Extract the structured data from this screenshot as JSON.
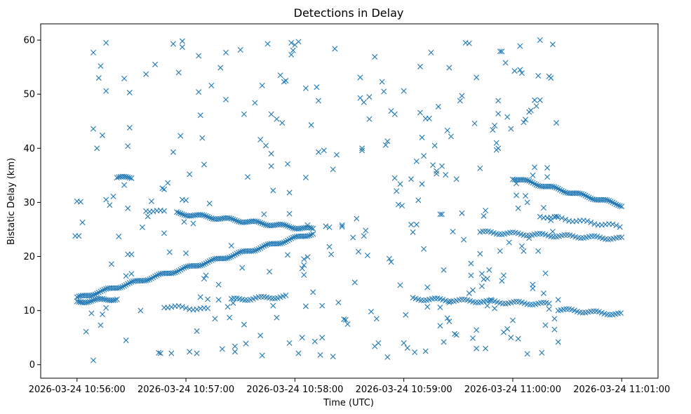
{
  "chart_data": {
    "type": "scatter",
    "title": "Detections in Delay",
    "xlabel": "Time (UTC)",
    "ylabel": "Bistatic Delay (km)",
    "marker": "x",
    "color": "#1f77b4",
    "xlim_seconds": [
      -20,
      320
    ],
    "ylim": [
      -2.5,
      63
    ],
    "x_ticks": [
      {
        "t": 0,
        "label": "2026-03-24 10:56:00"
      },
      {
        "t": 60,
        "label": "2026-03-24 10:57:00"
      },
      {
        "t": 120,
        "label": "2026-03-24 10:58:00"
      },
      {
        "t": 180,
        "label": "2026-03-24 10:59:00"
      },
      {
        "t": 240,
        "label": "2026-03-24 11:00:00"
      },
      {
        "t": 300,
        "label": "2026-03-24 11:01:00"
      }
    ],
    "y_ticks": [
      0,
      10,
      20,
      30,
      40,
      50,
      60
    ],
    "tracks": [
      {
        "name": "rising track",
        "t_start": 0,
        "t_end": 130,
        "y_start": 12.3,
        "y_end": 24.3,
        "step_s": 1
      },
      {
        "name": "falling track upper",
        "t_start": 55,
        "t_end": 130,
        "y_start": 28.0,
        "y_end": 25.0,
        "step_s": 1
      },
      {
        "name": "near 12 km left",
        "t_start": 0,
        "t_end": 22,
        "y_start": 11.6,
        "y_end": 12.2,
        "step_s": 1
      },
      {
        "name": "near 12 km mid",
        "t_start": 85,
        "t_end": 115,
        "y_start": 12.0,
        "y_end": 12.6,
        "step_s": 1.5
      },
      {
        "name": "near 12 km right",
        "t_start": 185,
        "t_end": 260,
        "y_start": 12.2,
        "y_end": 11.2,
        "step_s": 1.5
      },
      {
        "name": "near 10 km right",
        "t_start": 265,
        "t_end": 300,
        "y_start": 10.2,
        "y_end": 9.3,
        "step_s": 1.5
      },
      {
        "name": "24 km right",
        "t_start": 222,
        "t_end": 300,
        "y_start": 24.5,
        "y_end": 23.3,
        "step_s": 1.5
      },
      {
        "name": "falling track right",
        "t_start": 240,
        "t_end": 300,
        "y_start": 34.5,
        "y_end": 29.5,
        "step_s": 1
      },
      {
        "name": "27 km right",
        "t_start": 255,
        "t_end": 300,
        "y_start": 27.5,
        "y_end": 25.5,
        "step_s": 2
      },
      {
        "name": "34.5 km cluster",
        "t_start": 22,
        "t_end": 30,
        "y_start": 34.5,
        "y_end": 34.6,
        "step_s": 1
      },
      {
        "name": "28 km cluster",
        "t_start": 38,
        "t_end": 48,
        "y_start": 28.6,
        "y_end": 28.2,
        "step_s": 2
      },
      {
        "name": "11 km cluster",
        "t_start": 48,
        "t_end": 72,
        "y_start": 10.8,
        "y_end": 10.2,
        "step_s": 2
      }
    ],
    "scatter_points": [
      [
        -1,
        23.8
      ],
      [
        0,
        30.2
      ],
      [
        1,
        23.8
      ],
      [
        2,
        30.1
      ],
      [
        3,
        26.3
      ],
      [
        2,
        11.6
      ],
      [
        5,
        6.1
      ],
      [
        9,
        0.8
      ],
      [
        9,
        57.7
      ],
      [
        9,
        43.6
      ],
      [
        11,
        40.0
      ],
      [
        12,
        53.0
      ],
      [
        13,
        55.2
      ],
      [
        14,
        42.4
      ],
      [
        16,
        59.5
      ],
      [
        16,
        50.6
      ],
      [
        16,
        30.5
      ],
      [
        18,
        29.5
      ],
      [
        19,
        18.6
      ],
      [
        20,
        31.1
      ],
      [
        23,
        23.7
      ],
      [
        26,
        33.2
      ],
      [
        26,
        52.9
      ],
      [
        27,
        4.5
      ],
      [
        28,
        40.4
      ],
      [
        28,
        28.9
      ],
      [
        29,
        43.8
      ],
      [
        29,
        50.3
      ],
      [
        28,
        20.4
      ],
      [
        30,
        20.4
      ],
      [
        30,
        16.8
      ],
      [
        27,
        16.4
      ],
      [
        13,
        7.3
      ],
      [
        14,
        9.3
      ],
      [
        16,
        10.5
      ],
      [
        8,
        9.5
      ],
      [
        35,
        10.0
      ],
      [
        36,
        25.4
      ],
      [
        38,
        53.7
      ],
      [
        39,
        27.4
      ],
      [
        41,
        30.2
      ],
      [
        43,
        55.5
      ],
      [
        45,
        2.2
      ],
      [
        46,
        2.1
      ],
      [
        47,
        32.6
      ],
      [
        48,
        32.4
      ],
      [
        48,
        24.3
      ],
      [
        50,
        33.6
      ],
      [
        52,
        2.1
      ],
      [
        51,
        20.8
      ],
      [
        53,
        39.3
      ],
      [
        53,
        59.3
      ],
      [
        56,
        54.0
      ],
      [
        57,
        42.3
      ],
      [
        58,
        30.5
      ],
      [
        58,
        59.8
      ],
      [
        58,
        58.7
      ],
      [
        59,
        26.4
      ],
      [
        60,
        30.4
      ],
      [
        60,
        20.6
      ],
      [
        62,
        35.2
      ],
      [
        62,
        2.4
      ],
      [
        64,
        26.1
      ],
      [
        66,
        2.1
      ],
      [
        66,
        6.2
      ],
      [
        67,
        57.1
      ],
      [
        67,
        50.4
      ],
      [
        68,
        46.1
      ],
      [
        69,
        41.9
      ],
      [
        70,
        37.0
      ],
      [
        68,
        12.5
      ],
      [
        70,
        15.9
      ],
      [
        71,
        16.5
      ],
      [
        72,
        12.1
      ],
      [
        73,
        29.8
      ],
      [
        74,
        51.6
      ],
      [
        76,
        8.5
      ],
      [
        78,
        14.8
      ],
      [
        78,
        12.0
      ],
      [
        79,
        54.9
      ],
      [
        80,
        2.9
      ],
      [
        82,
        49.0
      ],
      [
        82,
        57.7
      ],
      [
        83,
        10.7
      ],
      [
        84,
        8.7
      ],
      [
        85,
        22.0
      ],
      [
        86,
        11.4
      ],
      [
        87,
        2.4
      ],
      [
        87,
        3.4
      ],
      [
        90,
        58.2
      ],
      [
        91,
        17.9
      ],
      [
        92,
        7.4
      ],
      [
        92,
        46.3
      ],
      [
        93,
        3.9
      ],
      [
        94,
        34.7
      ],
      [
        98,
        48.4
      ],
      [
        101,
        41.6
      ],
      [
        101,
        5.4
      ],
      [
        102,
        1.7
      ],
      [
        102,
        51.6
      ],
      [
        103,
        27.8
      ],
      [
        104,
        40.5
      ],
      [
        105,
        59.3
      ],
      [
        106,
        17.2
      ],
      [
        107,
        46.3
      ],
      [
        107,
        39.0
      ],
      [
        107,
        36.7
      ],
      [
        108,
        10.9
      ],
      [
        108,
        32.2
      ],
      [
        110,
        8.7
      ],
      [
        110,
        45.4
      ],
      [
        112,
        53.5
      ],
      [
        113,
        44.7
      ],
      [
        114,
        52.3
      ],
      [
        115,
        52.5
      ],
      [
        116,
        37.1
      ],
      [
        116,
        20.3
      ],
      [
        117,
        31.8
      ],
      [
        117,
        27.9
      ],
      [
        117,
        4.0
      ],
      [
        118,
        57.3
      ],
      [
        118,
        59.5
      ],
      [
        119,
        58.1
      ],
      [
        120,
        59.1
      ],
      [
        122,
        59.7
      ],
      [
        122,
        2.1
      ],
      [
        124,
        5.0
      ],
      [
        124,
        17.8
      ],
      [
        125,
        18.4
      ],
      [
        125,
        16.6
      ],
      [
        125,
        19.5
      ],
      [
        126,
        34.6
      ],
      [
        127,
        25.8
      ],
      [
        126,
        51.1
      ],
      [
        126,
        10.8
      ],
      [
        127,
        19.9
      ],
      [
        129,
        44.3
      ],
      [
        130,
        13.4
      ],
      [
        131,
        4.3
      ],
      [
        132,
        51.3
      ],
      [
        133,
        48.8
      ],
      [
        133,
        39.3
      ],
      [
        134,
        1.8
      ],
      [
        135,
        5.0
      ],
      [
        135,
        10.9
      ],
      [
        136,
        39.6
      ],
      [
        137,
        25.6
      ],
      [
        139,
        21.8
      ],
      [
        139,
        25.4
      ],
      [
        140,
        20.4
      ],
      [
        141,
        36.1
      ],
      [
        141,
        1.5
      ],
      [
        142,
        58.4
      ],
      [
        143,
        38.8
      ],
      [
        144,
        11.5
      ],
      [
        146,
        25.8
      ],
      [
        146,
        25.5
      ],
      [
        147,
        8.4
      ],
      [
        148,
        8.3
      ],
      [
        149,
        7.5
      ],
      [
        152,
        23.5
      ],
      [
        153,
        15.2
      ],
      [
        154,
        27.0
      ],
      [
        155,
        20.9
      ],
      [
        156,
        53.1
      ],
      [
        156,
        49.3
      ],
      [
        157,
        40.0
      ],
      [
        157,
        39.6
      ],
      [
        158,
        48.5
      ],
      [
        158,
        23.8
      ],
      [
        159,
        24.8
      ],
      [
        160,
        20.2
      ],
      [
        161,
        45.4
      ],
      [
        161,
        49.5
      ],
      [
        162,
        9.8
      ],
      [
        164,
        56.9
      ],
      [
        164,
        3.4
      ],
      [
        165,
        8.5
      ],
      [
        166,
        4.0
      ],
      [
        168,
        52.3
      ],
      [
        169,
        50.5
      ],
      [
        170,
        40.6
      ],
      [
        171,
        41.3
      ],
      [
        171,
        1.4
      ],
      [
        172,
        19.6
      ],
      [
        173,
        19.0
      ],
      [
        173,
        46.9
      ],
      [
        175,
        34.5
      ],
      [
        175,
        46.3
      ],
      [
        176,
        32.1
      ],
      [
        177,
        29.6
      ],
      [
        178,
        33.4
      ],
      [
        178,
        14.7
      ],
      [
        179,
        29.4
      ],
      [
        180,
        50.6
      ],
      [
        180,
        4.0
      ],
      [
        181,
        9.2
      ],
      [
        182,
        3.1
      ],
      [
        184,
        25.9
      ],
      [
        184,
        34.3
      ],
      [
        185,
        24.5
      ],
      [
        186,
        2.3
      ],
      [
        187,
        37.6
      ],
      [
        187,
        25.9
      ],
      [
        188,
        30.4
      ],
      [
        189,
        55.1
      ],
      [
        189,
        46.6
      ],
      [
        190,
        42.0
      ],
      [
        190,
        33.4
      ],
      [
        191,
        21.4
      ],
      [
        191,
        38.6
      ],
      [
        192,
        2.5
      ],
      [
        192,
        45.5
      ],
      [
        193,
        10.7
      ],
      [
        193,
        14.3
      ],
      [
        194,
        45.5
      ],
      [
        195,
        57.7
      ],
      [
        196,
        36.9
      ],
      [
        197,
        40.5
      ],
      [
        198,
        35.8
      ],
      [
        198,
        35.3
      ],
      [
        199,
        47.7
      ],
      [
        200,
        7.2
      ],
      [
        200,
        27.8
      ],
      [
        200,
        10.6
      ],
      [
        201,
        36.7
      ],
      [
        201,
        27.8
      ],
      [
        202,
        17.5
      ],
      [
        202,
        4.2
      ],
      [
        203,
        35.1
      ],
      [
        204,
        8.6
      ],
      [
        204,
        43.3
      ],
      [
        205,
        8.0
      ],
      [
        205,
        11.5
      ],
      [
        205,
        54.9
      ],
      [
        206,
        42.2
      ],
      [
        207,
        24.6
      ],
      [
        208,
        5.7
      ],
      [
        209,
        5.5
      ],
      [
        209,
        34.3
      ],
      [
        211,
        48.8
      ],
      [
        212,
        49.7
      ],
      [
        212,
        28.0
      ],
      [
        213,
        23.1
      ],
      [
        214,
        59.5
      ],
      [
        216,
        13.2
      ],
      [
        216,
        59.4
      ],
      [
        217,
        18.7
      ],
      [
        217,
        16.5
      ],
      [
        218,
        4.9
      ],
      [
        218,
        13.8
      ],
      [
        219,
        44.6
      ],
      [
        220,
        53.1
      ],
      [
        220,
        3.0
      ],
      [
        220,
        6.4
      ],
      [
        222,
        36.3
      ],
      [
        222,
        20.5
      ],
      [
        223,
        16.8
      ],
      [
        223,
        14.5
      ],
      [
        224,
        15.8
      ],
      [
        224,
        27.5
      ],
      [
        225,
        3.0
      ],
      [
        225,
        28.5
      ],
      [
        226,
        10.9
      ],
      [
        226,
        15.9
      ],
      [
        227,
        17.5
      ],
      [
        228,
        12.0
      ],
      [
        229,
        43.4
      ],
      [
        230,
        44.2
      ],
      [
        230,
        10.4
      ],
      [
        231,
        41.0
      ],
      [
        231,
        39.7
      ],
      [
        232,
        40.0
      ],
      [
        232,
        46.4
      ],
      [
        232,
        48.8
      ],
      [
        233,
        57.9
      ],
      [
        233,
        21.0
      ],
      [
        234,
        57.9
      ],
      [
        234,
        15.5
      ],
      [
        235,
        6.0
      ],
      [
        235,
        16.5
      ],
      [
        236,
        55.8
      ],
      [
        237,
        45.8
      ],
      [
        237,
        6.6
      ],
      [
        238,
        22.6
      ],
      [
        239,
        43.6
      ],
      [
        239,
        5.0
      ],
      [
        240,
        8.2
      ],
      [
        241,
        54.3
      ],
      [
        242,
        33.5
      ],
      [
        242,
        31.3
      ],
      [
        243,
        4.8
      ],
      [
        243,
        28.9
      ],
      [
        244,
        58.9
      ],
      [
        244,
        54.5
      ],
      [
        245,
        21.9
      ],
      [
        245,
        53.9
      ],
      [
        246,
        21.0
      ],
      [
        246,
        44.8
      ],
      [
        247,
        31.2
      ],
      [
        247,
        45.3
      ],
      [
        248,
        30.0
      ],
      [
        248,
        2.0
      ],
      [
        249,
        46.7
      ],
      [
        249,
        23.4
      ],
      [
        250,
        47.0
      ],
      [
        251,
        35.0
      ],
      [
        251,
        14.1
      ],
      [
        251,
        14.8
      ],
      [
        252,
        36.5
      ],
      [
        252,
        48.9
      ],
      [
        253,
        47.8
      ],
      [
        254,
        53.4
      ],
      [
        254,
        21.0
      ],
      [
        255,
        60.0
      ],
      [
        255,
        48.9
      ],
      [
        256,
        2.2
      ],
      [
        257,
        29.0
      ],
      [
        257,
        13.2
      ],
      [
        258,
        16.9
      ],
      [
        258,
        7.3
      ],
      [
        259,
        34.7
      ],
      [
        259,
        36.4
      ],
      [
        260,
        53.3
      ],
      [
        260,
        10.3
      ],
      [
        261,
        26.7
      ],
      [
        261,
        53.0
      ],
      [
        262,
        59.2
      ],
      [
        262,
        24.6
      ],
      [
        263,
        6.5
      ],
      [
        263,
        8.5
      ],
      [
        264,
        44.7
      ],
      [
        264,
        27.4
      ],
      [
        265,
        12.0
      ],
      [
        265,
        4.2
      ]
    ]
  }
}
